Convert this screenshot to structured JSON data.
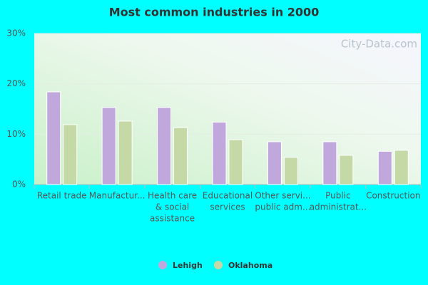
{
  "chart_data": {
    "type": "bar",
    "title": "Most common industries in 2000",
    "watermark": "City-Data.com",
    "categories": [
      [
        "Retail trade"
      ],
      [
        "Manufactur..."
      ],
      [
        "Health care",
        "& social",
        "assistance"
      ],
      [
        "Educational",
        "services"
      ],
      [
        "Other servi...",
        "public adm..."
      ],
      [
        "Public",
        "administrat..."
      ],
      [
        "Construction"
      ]
    ],
    "series": [
      {
        "name": "Lehigh",
        "color": "#c0a8dc",
        "values": [
          18.4,
          15.3,
          15.3,
          12.4,
          8.5,
          8.5,
          6.6
        ]
      },
      {
        "name": "Oklahoma",
        "color": "#c5d9a6",
        "values": [
          11.9,
          12.6,
          11.3,
          8.9,
          5.4,
          5.8,
          6.8
        ]
      }
    ],
    "ylim": [
      0,
      30
    ],
    "yticks": [
      {
        "value": 0,
        "label": "0%"
      },
      {
        "value": 10,
        "label": "10%"
      },
      {
        "value": 20,
        "label": "20%"
      },
      {
        "value": 30,
        "label": "30%"
      }
    ],
    "grid": true
  }
}
